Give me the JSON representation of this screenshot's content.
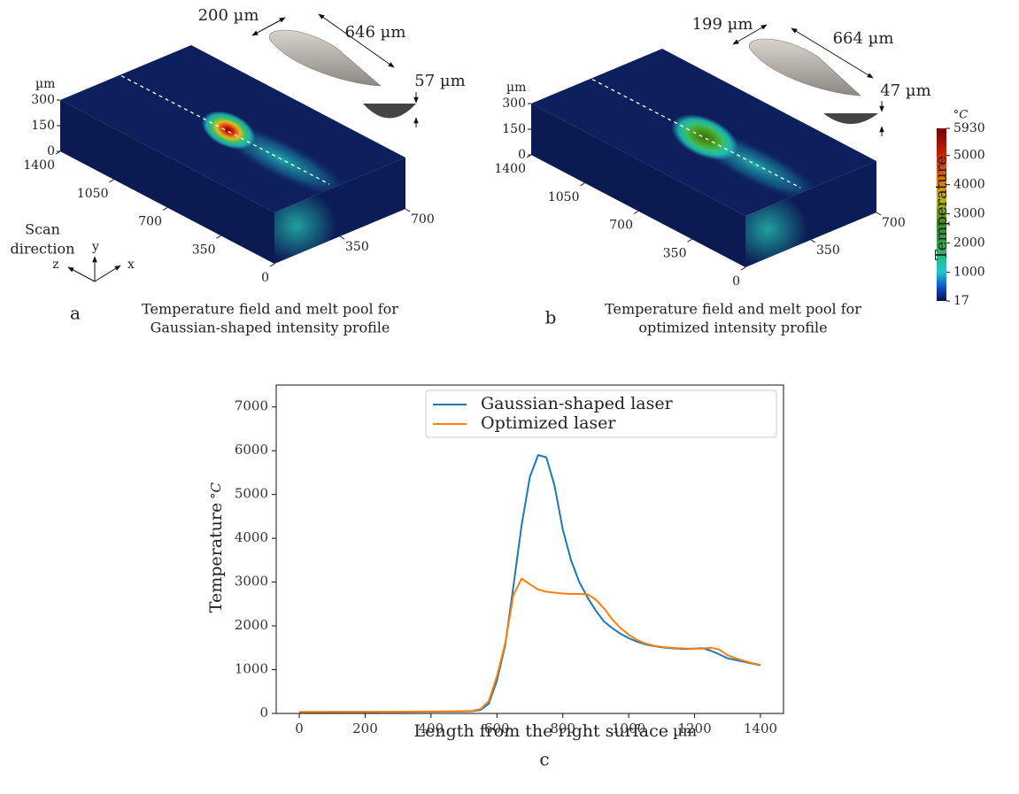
{
  "panels": [
    {
      "label": "a",
      "caption": [
        "Temperature field and melt pool for",
        "Gaussian-shaped intensity profile"
      ],
      "unit": "µm",
      "height_lim": [
        0,
        300
      ],
      "height_ticks": [
        0,
        150,
        300
      ],
      "length_lim": [
        0,
        1400
      ],
      "length_ticks": [
        0,
        350,
        700,
        1050,
        1400
      ],
      "width_lim": [
        0,
        700
      ],
      "width_ticks": [
        350,
        700
      ],
      "melt_pool": {
        "width": "200 µm",
        "length": "646 µm",
        "depth": "57 µm"
      },
      "scan_direction": [
        "Scan",
        "direction"
      ],
      "axes": {
        "x": "x",
        "y": "y",
        "z": "z"
      }
    },
    {
      "label": "b",
      "caption": [
        "Temperature field and melt pool for",
        "optimized intensity profile"
      ],
      "unit": "µm",
      "height_lim": [
        0,
        300
      ],
      "height_ticks": [
        0,
        150,
        300
      ],
      "length_lim": [
        0,
        1400
      ],
      "length_ticks": [
        0,
        350,
        700,
        1050,
        1400
      ],
      "width_lim": [
        0,
        700
      ],
      "width_ticks": [
        350,
        700
      ],
      "melt_pool": {
        "width": "199 µm",
        "length": "664 µm",
        "depth": "47 µm"
      }
    }
  ],
  "colorbar": {
    "label": "Temperature",
    "unit": "°C",
    "lim": [
      17,
      5930
    ],
    "ticks": [
      17,
      1000,
      2000,
      3000,
      4000,
      5000,
      5930
    ]
  },
  "chart_data": {
    "type": "line",
    "label": "c",
    "xlabel": "Length from the right surface",
    "xlabel_unit": "µm",
    "ylabel": "Temperature",
    "ylabel_unit": "°C",
    "xlim": [
      -70,
      1470
    ],
    "xticks": [
      0,
      200,
      400,
      600,
      800,
      1000,
      1200,
      1400
    ],
    "ylim": [
      0,
      7500
    ],
    "yticks": [
      0,
      1000,
      2000,
      3000,
      4000,
      5000,
      6000,
      7000
    ],
    "legend": "upper right",
    "x": [
      0,
      25,
      50,
      75,
      100,
      125,
      150,
      175,
      200,
      225,
      250,
      275,
      300,
      325,
      350,
      375,
      400,
      425,
      450,
      475,
      500,
      525,
      550,
      575,
      600,
      625,
      650,
      675,
      700,
      725,
      750,
      775,
      800,
      825,
      850,
      875,
      900,
      925,
      950,
      975,
      1000,
      1025,
      1050,
      1075,
      1100,
      1125,
      1150,
      1175,
      1200,
      1225,
      1250,
      1275,
      1300,
      1325,
      1350,
      1375,
      1400
    ],
    "series": [
      {
        "name": "Gaussian-shaped laser",
        "color": "#1f77b4",
        "values": [
          30,
          30,
          31,
          31,
          32,
          32,
          33,
          33,
          34,
          34,
          35,
          35,
          36,
          36,
          38,
          38,
          40,
          40,
          42,
          43,
          45,
          50,
          80,
          220,
          750,
          1550,
          2900,
          4300,
          5400,
          5900,
          5850,
          5200,
          4200,
          3500,
          3000,
          2650,
          2350,
          2100,
          1950,
          1820,
          1720,
          1640,
          1580,
          1540,
          1510,
          1490,
          1480,
          1470,
          1480,
          1490,
          1430,
          1350,
          1260,
          1220,
          1180,
          1140,
          1100
        ]
      },
      {
        "name": "Optimized laser",
        "color": "#ff7f0e",
        "values": [
          35,
          35,
          36,
          36,
          37,
          37,
          38,
          38,
          39,
          39,
          40,
          40,
          41,
          42,
          43,
          44,
          45,
          46,
          48,
          50,
          52,
          58,
          100,
          280,
          850,
          1600,
          2700,
          3080,
          2950,
          2830,
          2780,
          2760,
          2740,
          2730,
          2730,
          2720,
          2600,
          2400,
          2150,
          1950,
          1800,
          1680,
          1600,
          1550,
          1520,
          1500,
          1490,
          1480,
          1480,
          1480,
          1500,
          1460,
          1330,
          1260,
          1200,
          1150,
          1110
        ]
      }
    ]
  }
}
